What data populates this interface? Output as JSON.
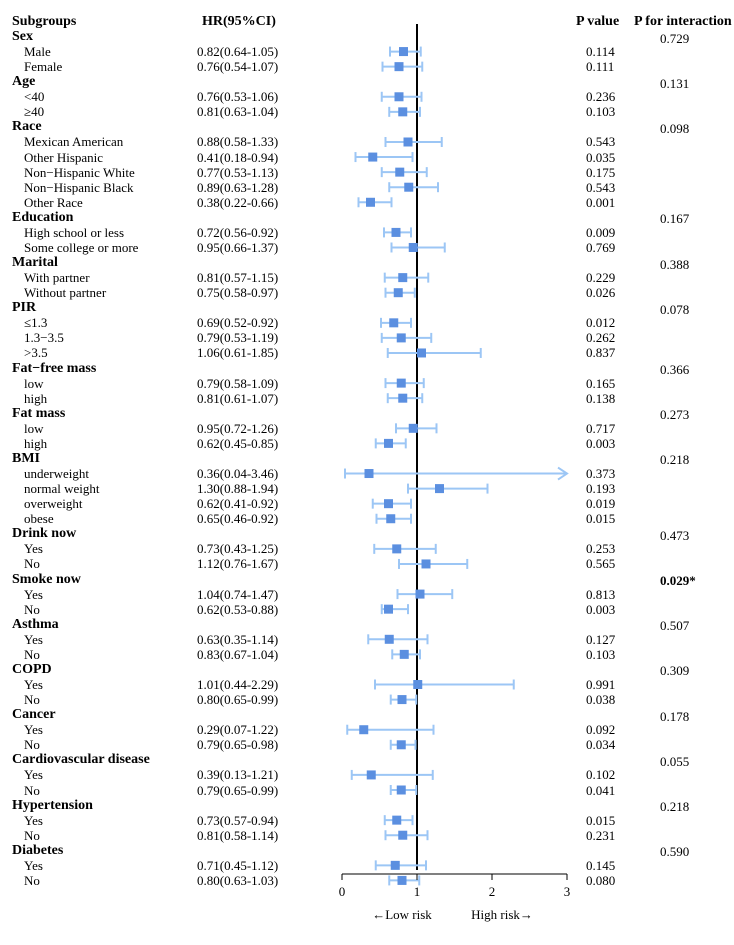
{
  "headers": {
    "subgroups": "Subgroups",
    "hr": "HR(95%CI)",
    "p_value": "P value",
    "p_interaction": "P for interaction"
  },
  "colors": {
    "marker": "#5b8fe0",
    "ci_line": "#9cc6f5",
    "reference_line": "#000000"
  },
  "chart_data": {
    "type": "forest",
    "xlim": [
      0,
      3
    ],
    "xticks": [
      "0",
      "1",
      "2",
      "3"
    ],
    "reference_value": 1,
    "x_annotations": {
      "left": "←Low risk",
      "right": "High risk→"
    },
    "groups": [
      {
        "name": "Sex",
        "p_interaction": "0.729",
        "rows": [
          {
            "label": "Male",
            "hr_text": "0.82(0.64-1.05)",
            "hr": 0.82,
            "lo": 0.64,
            "hi": 1.05,
            "p": "0.114"
          },
          {
            "label": "Female",
            "hr_text": "0.76(0.54-1.07)",
            "hr": 0.76,
            "lo": 0.54,
            "hi": 1.07,
            "p": "0.111"
          }
        ]
      },
      {
        "name": "Age",
        "p_interaction": "0.131",
        "rows": [
          {
            "label": "<40",
            "hr_text": "0.76(0.53-1.06)",
            "hr": 0.76,
            "lo": 0.53,
            "hi": 1.06,
            "p": "0.236"
          },
          {
            "label": "≥40",
            "hr_text": "0.81(0.63-1.04)",
            "hr": 0.81,
            "lo": 0.63,
            "hi": 1.04,
            "p": "0.103"
          }
        ]
      },
      {
        "name": "Race",
        "p_interaction": "0.098",
        "rows": [
          {
            "label": "Mexican American",
            "hr_text": "0.88(0.58-1.33)",
            "hr": 0.88,
            "lo": 0.58,
            "hi": 1.33,
            "p": "0.543"
          },
          {
            "label": "Other Hispanic",
            "hr_text": "0.41(0.18-0.94)",
            "hr": 0.41,
            "lo": 0.18,
            "hi": 0.94,
            "p": "0.035"
          },
          {
            "label": "Non−Hispanic White",
            "hr_text": "0.77(0.53-1.13)",
            "hr": 0.77,
            "lo": 0.53,
            "hi": 1.13,
            "p": "0.175"
          },
          {
            "label": "Non−Hispanic Black",
            "hr_text": "0.89(0.63-1.28)",
            "hr": 0.89,
            "lo": 0.63,
            "hi": 1.28,
            "p": "0.543"
          },
          {
            "label": "Other Race",
            "hr_text": "0.38(0.22-0.66)",
            "hr": 0.38,
            "lo": 0.22,
            "hi": 0.66,
            "p": "0.001"
          }
        ]
      },
      {
        "name": "Education",
        "p_interaction": "0.167",
        "rows": [
          {
            "label": "High school or less",
            "hr_text": "0.72(0.56-0.92)",
            "hr": 0.72,
            "lo": 0.56,
            "hi": 0.92,
            "p": "0.009"
          },
          {
            "label": "Some college or more",
            "hr_text": "0.95(0.66-1.37)",
            "hr": 0.95,
            "lo": 0.66,
            "hi": 1.37,
            "p": "0.769"
          }
        ]
      },
      {
        "name": "Marital",
        "p_interaction": "0.388",
        "rows": [
          {
            "label": "With partner",
            "hr_text": "0.81(0.57-1.15)",
            "hr": 0.81,
            "lo": 0.57,
            "hi": 1.15,
            "p": "0.229"
          },
          {
            "label": "Without partner",
            "hr_text": "0.75(0.58-0.97)",
            "hr": 0.75,
            "lo": 0.58,
            "hi": 0.97,
            "p": "0.026"
          }
        ]
      },
      {
        "name": "PIR",
        "p_interaction": "0.078",
        "rows": [
          {
            "label": "≤1.3",
            "hr_text": "0.69(0.52-0.92)",
            "hr": 0.69,
            "lo": 0.52,
            "hi": 0.92,
            "p": "0.012"
          },
          {
            "label": "1.3−3.5",
            "hr_text": "0.79(0.53-1.19)",
            "hr": 0.79,
            "lo": 0.53,
            "hi": 1.19,
            "p": "0.262"
          },
          {
            "label": ">3.5",
            "hr_text": "1.06(0.61-1.85)",
            "hr": 1.06,
            "lo": 0.61,
            "hi": 1.85,
            "p": "0.837"
          }
        ]
      },
      {
        "name": "Fat−free mass",
        "p_interaction": "0.366",
        "rows": [
          {
            "label": "low",
            "hr_text": "0.79(0.58-1.09)",
            "hr": 0.79,
            "lo": 0.58,
            "hi": 1.09,
            "p": "0.165"
          },
          {
            "label": "high",
            "hr_text": "0.81(0.61-1.07)",
            "hr": 0.81,
            "lo": 0.61,
            "hi": 1.07,
            "p": "0.138"
          }
        ]
      },
      {
        "name": "Fat mass",
        "p_interaction": "0.273",
        "rows": [
          {
            "label": "low",
            "hr_text": "0.95(0.72-1.26)",
            "hr": 0.95,
            "lo": 0.72,
            "hi": 1.26,
            "p": "0.717"
          },
          {
            "label": "high",
            "hr_text": "0.62(0.45-0.85)",
            "hr": 0.62,
            "lo": 0.45,
            "hi": 0.85,
            "p": "0.003"
          }
        ]
      },
      {
        "name": "BMI",
        "p_interaction": "0.218",
        "rows": [
          {
            "label": "underweight",
            "hr_text": "0.36(0.04-3.46)",
            "hr": 0.36,
            "lo": 0.04,
            "hi": 3.46,
            "p": "0.373"
          },
          {
            "label": "normal weight",
            "hr_text": "1.30(0.88-1.94)",
            "hr": 1.3,
            "lo": 0.88,
            "hi": 1.94,
            "p": "0.193"
          },
          {
            "label": "overweight",
            "hr_text": "0.62(0.41-0.92)",
            "hr": 0.62,
            "lo": 0.41,
            "hi": 0.92,
            "p": "0.019"
          },
          {
            "label": "obese",
            "hr_text": "0.65(0.46-0.92)",
            "hr": 0.65,
            "lo": 0.46,
            "hi": 0.92,
            "p": "0.015"
          }
        ]
      },
      {
        "name": "Drink now",
        "p_interaction": "0.473",
        "rows": [
          {
            "label": "Yes",
            "hr_text": "0.73(0.43-1.25)",
            "hr": 0.73,
            "lo": 0.43,
            "hi": 1.25,
            "p": "0.253"
          },
          {
            "label": "No",
            "hr_text": "1.12(0.76-1.67)",
            "hr": 1.12,
            "lo": 0.76,
            "hi": 1.67,
            "p": "0.565"
          }
        ]
      },
      {
        "name": "Smoke now",
        "p_interaction": "0.029*",
        "p_interaction_bold": true,
        "rows": [
          {
            "label": "Yes",
            "hr_text": "1.04(0.74-1.47)",
            "hr": 1.04,
            "lo": 0.74,
            "hi": 1.47,
            "p": "0.813"
          },
          {
            "label": "No",
            "hr_text": "0.62(0.53-0.88)",
            "hr": 0.62,
            "lo": 0.53,
            "hi": 0.88,
            "p": "0.003"
          }
        ]
      },
      {
        "name": "Asthma",
        "p_interaction": "0.507",
        "rows": [
          {
            "label": "Yes",
            "hr_text": "0.63(0.35-1.14)",
            "hr": 0.63,
            "lo": 0.35,
            "hi": 1.14,
            "p": "0.127"
          },
          {
            "label": "No",
            "hr_text": "0.83(0.67-1.04)",
            "hr": 0.83,
            "lo": 0.67,
            "hi": 1.04,
            "p": "0.103"
          }
        ]
      },
      {
        "name": "COPD",
        "p_interaction": "0.309",
        "rows": [
          {
            "label": "Yes",
            "hr_text": "1.01(0.44-2.29)",
            "hr": 1.01,
            "lo": 0.44,
            "hi": 2.29,
            "p": "0.991"
          },
          {
            "label": "No",
            "hr_text": "0.80(0.65-0.99)",
            "hr": 0.8,
            "lo": 0.65,
            "hi": 0.99,
            "p": "0.038"
          }
        ]
      },
      {
        "name": "Cancer",
        "p_interaction": "0.178",
        "rows": [
          {
            "label": "Yes",
            "hr_text": "0.29(0.07-1.22)",
            "hr": 0.29,
            "lo": 0.07,
            "hi": 1.22,
            "p": "0.092"
          },
          {
            "label": "No",
            "hr_text": "0.79(0.65-0.98)",
            "hr": 0.79,
            "lo": 0.65,
            "hi": 0.98,
            "p": "0.034"
          }
        ]
      },
      {
        "name": "Cardiovascular disease",
        "p_interaction": "0.055",
        "rows": [
          {
            "label": "Yes",
            "hr_text": "0.39(0.13-1.21)",
            "hr": 0.39,
            "lo": 0.13,
            "hi": 1.21,
            "p": "0.102"
          },
          {
            "label": "No",
            "hr_text": "0.79(0.65-0.99)",
            "hr": 0.79,
            "lo": 0.65,
            "hi": 0.99,
            "p": "0.041"
          }
        ]
      },
      {
        "name": "Hypertension",
        "p_interaction": "0.218",
        "rows": [
          {
            "label": "Yes",
            "hr_text": "0.73(0.57-0.94)",
            "hr": 0.73,
            "lo": 0.57,
            "hi": 0.94,
            "p": "0.015"
          },
          {
            "label": "No",
            "hr_text": "0.81(0.58-1.14)",
            "hr": 0.81,
            "lo": 0.58,
            "hi": 1.14,
            "p": "0.231"
          }
        ]
      },
      {
        "name": "Diabetes",
        "p_interaction": "0.590",
        "rows": [
          {
            "label": "Yes",
            "hr_text": "0.71(0.45-1.12)",
            "hr": 0.71,
            "lo": 0.45,
            "hi": 1.12,
            "p": "0.145"
          },
          {
            "label": "No",
            "hr_text": "0.80(0.63-1.03)",
            "hr": 0.8,
            "lo": 0.63,
            "hi": 1.03,
            "p": "0.080"
          }
        ]
      }
    ]
  }
}
